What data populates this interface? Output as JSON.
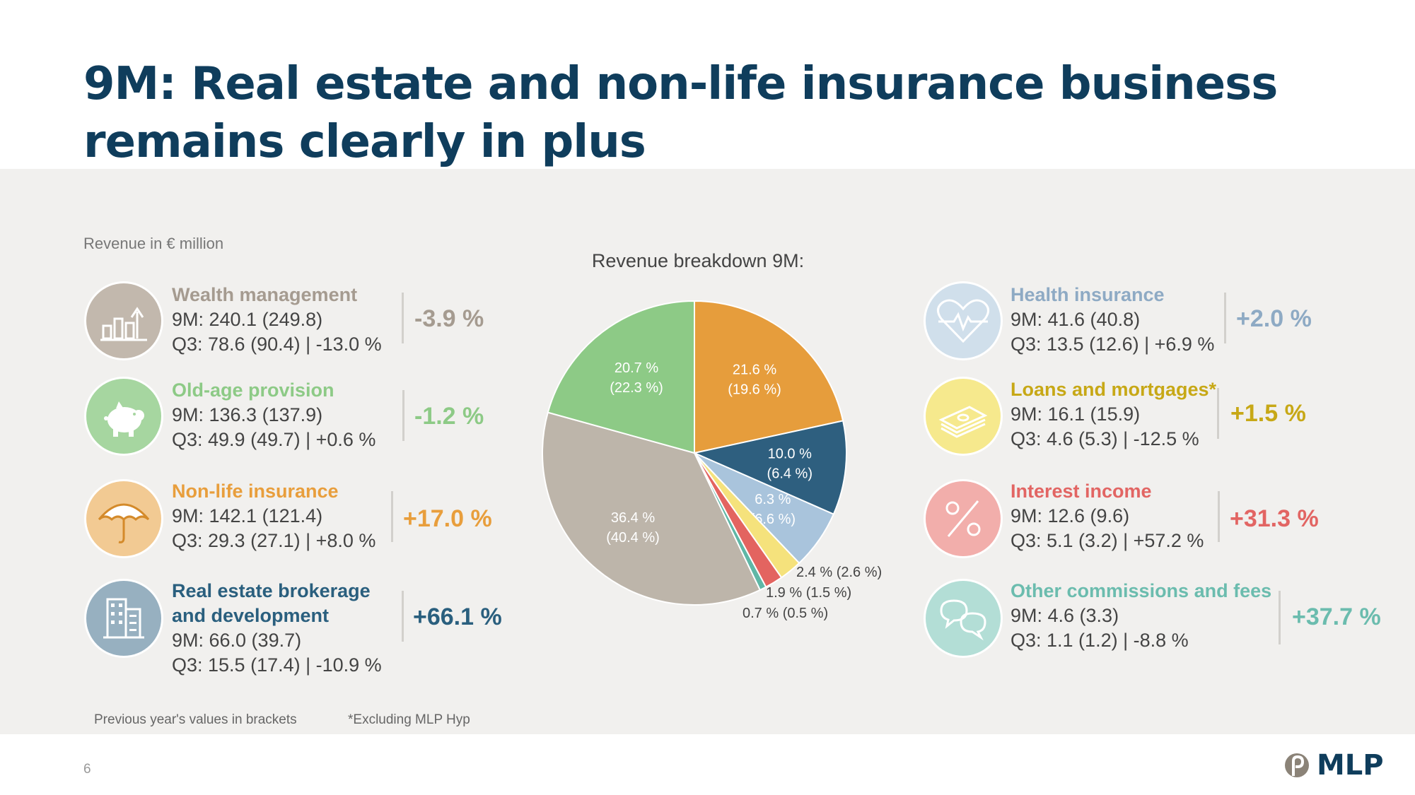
{
  "title": "9M: Real estate and non-life insurance business remains clearly in plus",
  "unit_label": "Revenue in € million",
  "chart_title": "Revenue breakdown 9M:",
  "segments_left": [
    {
      "name": "Wealth management",
      "nine_m": "9M: 240.1 (249.8)",
      "q3": "Q3: 78.6 (90.4) | -13.0 %",
      "change": "-3.9 %",
      "color": "#a59b90",
      "icon": "bar-chart-icon",
      "icon_bg": "#c2b8ad"
    },
    {
      "name": "Old-age provision",
      "nine_m": "9M: 136.3 (137.9)",
      "q3": "Q3: 49.9 (49.7) | +0.6 %",
      "change": "-1.2 %",
      "color": "#8dca86",
      "icon": "piggy-bank-icon",
      "icon_bg": "#a6d6a0"
    },
    {
      "name": "Non-life insurance",
      "nine_m": "9M: 142.1 (121.4)",
      "q3": "Q3: 29.3 (27.1) | +8.0 %",
      "change": "+17.0 %",
      "color": "#e89e3c",
      "icon": "umbrella-icon",
      "icon_bg": "#f2ca93"
    },
    {
      "name_line1": "Real estate brokerage",
      "name_line2": "and development",
      "nine_m": "9M: 66.0 (39.7)",
      "q3": "Q3: 15.5 (17.4) | -10.9 %",
      "change": "+66.1 %",
      "color": "#2a5f7e",
      "icon": "building-icon",
      "icon_bg": "#97b0c0"
    }
  ],
  "segments_right": [
    {
      "name": "Health insurance",
      "nine_m": "9M: 41.6 (40.8)",
      "q3": "Q3: 13.5 (12.6) | +6.9 %",
      "change": "+2.0 %",
      "color": "#8eaac4",
      "icon": "heartbeat-icon",
      "icon_bg": "#d0dfeb"
    },
    {
      "name": "Loans and mortgages*",
      "nine_m": "9M: 16.1 (15.9)",
      "q3": "Q3: 4.6 (5.3) | -12.5 %",
      "change": "+1.5 %",
      "color": "#c7a816",
      "icon": "money-icon",
      "icon_bg": "#f6e98d"
    },
    {
      "name": "Interest income",
      "nine_m": "9M: 12.6 (9.6)",
      "q3": "Q3: 5.1 (3.2) | +57.2 %",
      "change": "+31.3 %",
      "color": "#e26563",
      "icon": "percent-icon",
      "icon_bg": "#f2aeab"
    },
    {
      "name": "Other commissions and fees",
      "nine_m": "9M: 4.6 (3.3)",
      "q3": "Q3: 1.1 (1.2) | -8.8 %",
      "change": "+37.7 %",
      "color": "#6bbcae",
      "icon": "speech-bubbles-icon",
      "icon_bg": "#b3ded6"
    }
  ],
  "chart_data": {
    "type": "pie",
    "title": "Revenue breakdown 9M:",
    "slices": [
      {
        "label_pct": "21.6 %",
        "label_prev": "(19.6 %)",
        "value": 21.6,
        "prev": 19.6,
        "color": "#e69d3c"
      },
      {
        "label_pct": "10.0 %",
        "label_prev": "(6.4 %)",
        "value": 10.0,
        "prev": 6.4,
        "color": "#2e5f7f"
      },
      {
        "label_pct": "6.3 %",
        "label_prev": "(6.6 %)",
        "value": 6.3,
        "prev": 6.6,
        "color": "#a9c4dc"
      },
      {
        "label": "2.4 % (2.6 %)",
        "value": 2.4,
        "prev": 2.6,
        "color": "#f5e27c"
      },
      {
        "label": "1.9 % (1.5 %)",
        "value": 1.9,
        "prev": 1.5,
        "color": "#e36460"
      },
      {
        "label": "0.7 % (0.5 %)",
        "value": 0.7,
        "prev": 0.5,
        "color": "#5fb7a6"
      },
      {
        "label_pct": "36.4 %",
        "label_prev": "(40.4 %)",
        "value": 36.4,
        "prev": 40.4,
        "color": "#bdb5aa"
      },
      {
        "label_pct": "20.7 %",
        "label_prev": "(22.3 %)",
        "value": 20.7,
        "prev": 22.3,
        "color": "#8dca86"
      }
    ]
  },
  "footnotes": {
    "previous": "Previous year's values in brackets",
    "excluding": "*Excluding MLP Hyp"
  },
  "page_number": "6",
  "logo_text": "MLP",
  "brand_color": "#0f3d5c"
}
